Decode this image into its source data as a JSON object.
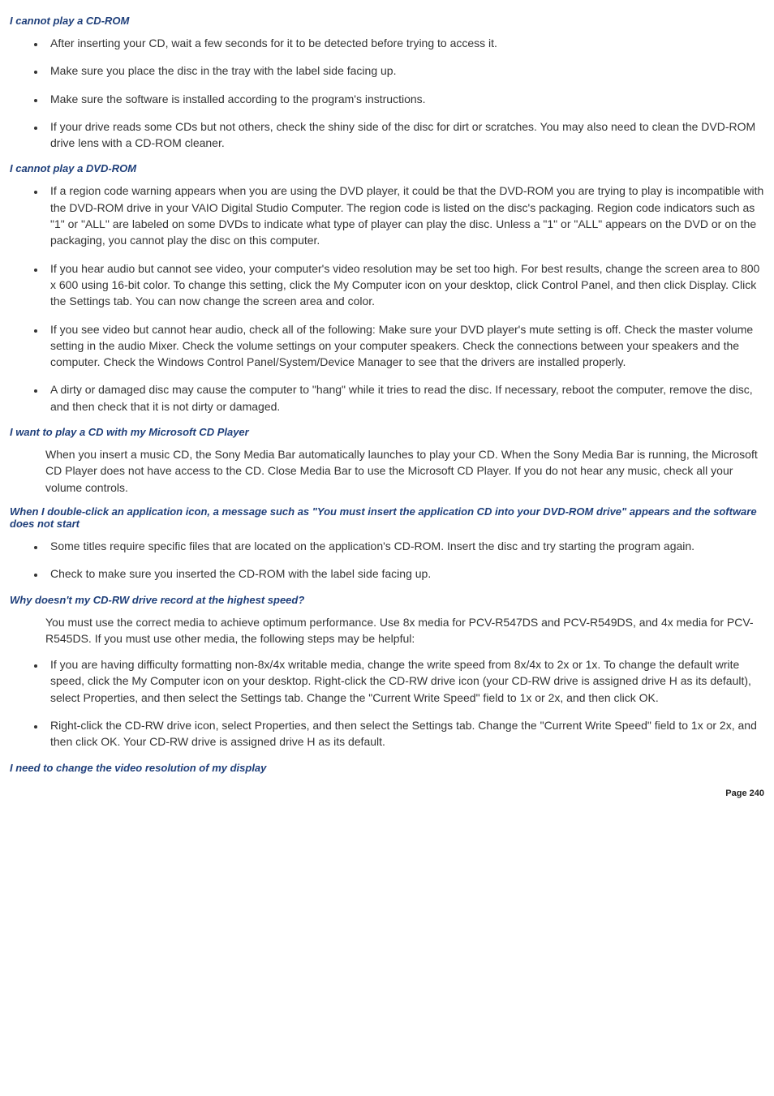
{
  "colors": {
    "heading": "#1f3f7a",
    "body_text": "#333333",
    "background": "#ffffff"
  },
  "typography": {
    "heading_style": "bold italic",
    "heading_fontsize_pt": 10,
    "body_fontsize_pt": 11,
    "font_family": "Verdana"
  },
  "sections": [
    {
      "heading": "I cannot play a CD-ROM",
      "items": [
        "After inserting your CD, wait a few seconds for it to be detected before trying to access it.",
        "Make sure you place the disc in the tray with the label side facing up.",
        "Make sure the software is installed according to the program's instructions.",
        "If your drive reads some CDs but not others, check the shiny side of the disc for dirt or scratches. You may also need to clean the DVD-ROM drive lens with a CD-ROM cleaner."
      ]
    },
    {
      "heading": "I cannot play a DVD-ROM",
      "items": [
        "If a region code warning appears when you are using the DVD player, it could be that the DVD-ROM you are trying to play is incompatible with the DVD-ROM drive in your VAIO Digital Studio Computer. The region code is listed on the disc's packaging. Region code indicators such as \"1\" or \"ALL\" are labeled on some DVDs to indicate what type of player can play the disc. Unless a \"1\" or \"ALL\" appears on the DVD or on the packaging, you cannot play the disc on this computer.",
        "If you hear audio but cannot see video, your computer's video resolution may be set too high. For best results, change the screen area to 800 x 600 using 16-bit color. To change this setting, click the My Computer icon on your desktop, click Control Panel, and then click Display. Click the Settings tab. You can now change the screen area and color.",
        "If you see video but cannot hear audio, check all of the following: Make sure your DVD player's mute setting is off. Check the master volume setting in the audio Mixer. Check the volume settings on your computer speakers. Check the connections between your speakers and the computer. Check the Windows   Control Panel/System/Device Manager to see that the drivers are installed properly.",
        "A dirty or damaged disc may cause the computer to \"hang\" while it tries to read the disc. If necessary, reboot the computer, remove the disc, and then check that it is not dirty or damaged."
      ]
    },
    {
      "heading": "I want to play a CD with my Microsoft CD Player",
      "para": "When you insert a music CD, the Sony Media Bar    automatically launches to play your CD. When the Sony Media Bar is running, the Microsoft CD Player does not have access to the CD. Close Media Bar to use the Microsoft CD Player. If you do not hear any music, check all your volume controls."
    },
    {
      "heading": "When I double-click an application icon, a message such as \"You must insert the application CD into your DVD-ROM drive\" appears and the software does not start",
      "items": [
        "Some titles require specific files that are located on the application's CD-ROM. Insert the disc and try starting the program again.",
        "Check to make sure you inserted the CD-ROM with the label side facing up."
      ]
    },
    {
      "heading": "Why doesn't my CD-RW drive record at the highest speed?",
      "para": "You must use the correct media to achieve optimum performance. Use 8x media for PCV-R547DS and PCV-R549DS, and 4x media for PCV-R545DS. If you must use other media, the following steps may be helpful:",
      "items": [
        "If you are having difficulty formatting non-8x/4x writable media, change the write speed from 8x/4x to 2x or 1x. To change the default write speed, click the My Computer icon on your desktop. Right-click the CD-RW drive icon (your CD-RW drive is assigned drive H as its default), select Properties, and then select the Settings tab. Change the \"Current Write Speed\" field to 1x or 2x, and then click OK.",
        "Right-click the CD-RW drive icon, select Properties, and then select the Settings tab. Change the \"Current Write Speed\" field to 1x or 2x, and then click OK. Your CD-RW drive is assigned drive H as its default."
      ]
    },
    {
      "heading": "I need to change the video resolution of my display"
    }
  ],
  "footer": "Page 240"
}
